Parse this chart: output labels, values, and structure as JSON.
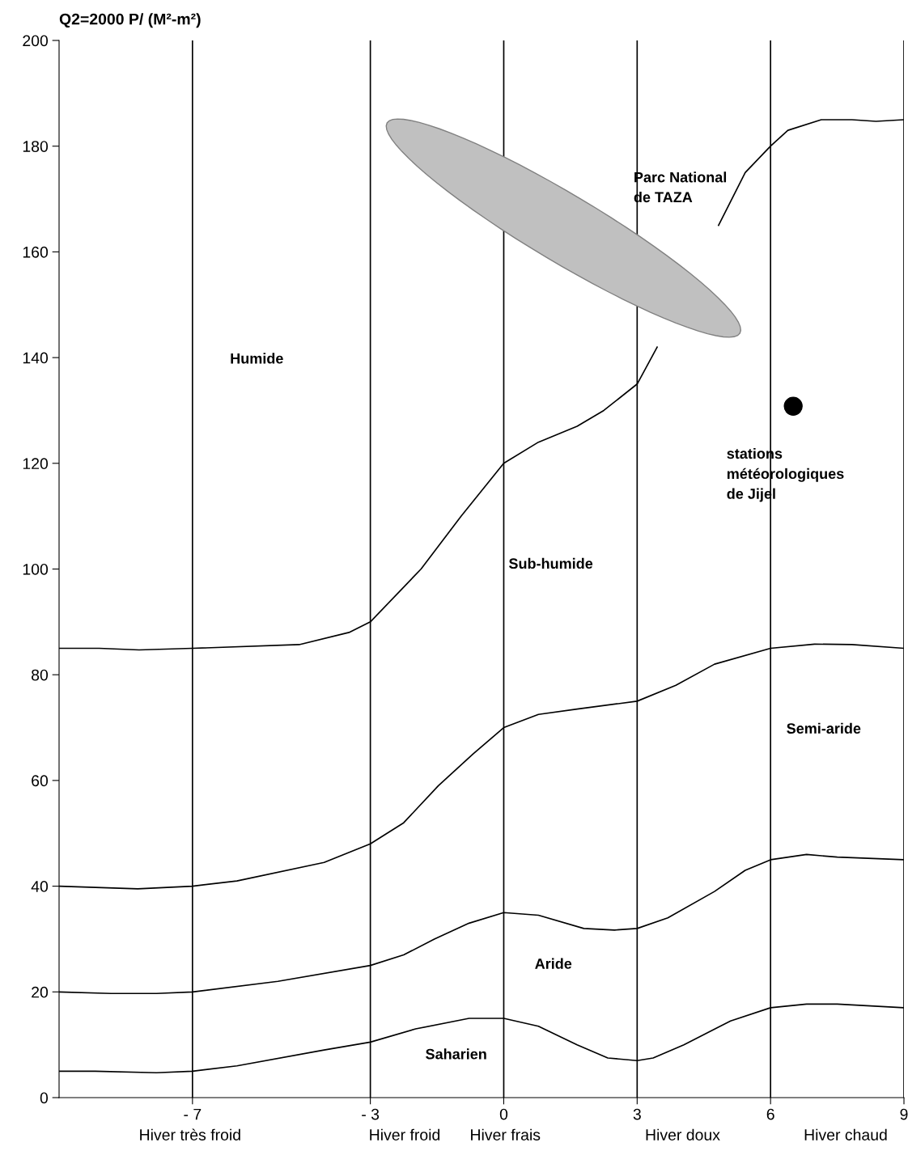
{
  "chart_data": {
    "type": "line",
    "title": "Q2=2000 P/ (M²-m²)",
    "xlim": [
      -10,
      9
    ],
    "ylim": [
      0,
      200
    ],
    "xticks": [
      {
        "value": -7,
        "label": "- 7"
      },
      {
        "value": -3,
        "label": "- 3"
      },
      0,
      3,
      6,
      9
    ],
    "yticks": [
      0,
      20,
      40,
      60,
      80,
      100,
      120,
      140,
      160,
      180,
      200
    ],
    "grid": "x",
    "marker": "none",
    "line_style": "solid",
    "series": [
      {
        "color": "#000000",
        "x": [
          -10,
          -9.1,
          -8.2,
          -7,
          -4.6,
          -3.48,
          -3,
          -1.86,
          -0.96,
          0,
          0.78,
          1.65,
          2.25,
          3,
          3.45,
          4.05,
          4.83,
          5.43,
          6,
          6.39,
          7.14,
          7.83,
          8.37,
          9
        ],
        "values": [
          85,
          85,
          84.7,
          85,
          85.7,
          88,
          90,
          100,
          110,
          120,
          124,
          127,
          130,
          135,
          142,
          null,
          165,
          175,
          180,
          183,
          185,
          185,
          184.7,
          185
        ]
      },
      {
        "color": "#000000",
        "x": [
          -10,
          -8.23,
          -7,
          -6,
          -4.04,
          -3,
          -2.25,
          -1.47,
          -0.69,
          0,
          0.78,
          1.65,
          3,
          3.87,
          4.74,
          6,
          6.99,
          7.83,
          9
        ],
        "values": [
          40,
          39.5,
          40,
          41,
          44.5,
          48,
          52,
          59,
          65,
          70,
          72.5,
          73.5,
          75,
          78,
          82,
          85,
          85.8,
          85.7,
          85
        ]
      },
      {
        "color": "#000000",
        "x": [
          -10,
          -8.83,
          -7.81,
          -7,
          -5.08,
          -3,
          -2.25,
          -1.56,
          -0.78,
          0,
          0.78,
          1.8,
          2.49,
          3,
          3.69,
          4.74,
          5.43,
          6,
          6.81,
          7.5,
          9
        ],
        "values": [
          20,
          19.7,
          19.7,
          20,
          22,
          25,
          27,
          30,
          33,
          35,
          34.5,
          32,
          31.7,
          32,
          34,
          39,
          43,
          45,
          46,
          45.5,
          45
        ]
      },
      {
        "color": "#000000",
        "x": [
          -10,
          -9.19,
          -7.81,
          -7,
          -6,
          -4.04,
          -3,
          -1.98,
          -0.78,
          0,
          0.78,
          1.65,
          2.34,
          3,
          3.36,
          4.05,
          5.1,
          6,
          6.81,
          7.5,
          9
        ],
        "values": [
          5,
          5,
          4.7,
          5,
          6,
          9,
          10.5,
          13,
          15,
          15,
          13.5,
          10,
          7.5,
          7,
          7.5,
          10,
          14.5,
          17,
          17.7,
          17.7,
          17
        ]
      },
      {
        "type": "scatter",
        "color": "#000000",
        "marker": "circle",
        "x": [
          6.51
        ],
        "values": [
          130.8
        ]
      }
    ],
    "annotations": [
      "Humide",
      "Sub-humide",
      "Semi-aride",
      "Aride",
      "Saharien",
      "Parc National\nde TAZA",
      "stations\nmétéorologiques\nde Jijel",
      "Hiver très froid",
      "Hiver froid",
      "Hiver frais",
      "Hiver doux",
      "Hiver chaud"
    ]
  }
}
